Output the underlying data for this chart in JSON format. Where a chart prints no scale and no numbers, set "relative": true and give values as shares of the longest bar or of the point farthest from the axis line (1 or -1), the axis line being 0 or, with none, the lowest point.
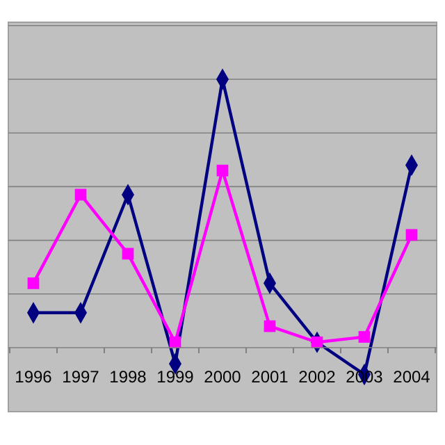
{
  "chart_data": {
    "type": "line",
    "relative": true,
    "grid": "y",
    "categories": [
      "1996",
      "1997",
      "1998",
      "1999",
      "2000",
      "2001",
      "2002",
      "2003",
      "2004"
    ],
    "series": [
      {
        "color": "#000080",
        "marker": "diamond",
        "values": [
          0.13,
          0.13,
          0.57,
          -0.06,
          1,
          0.24,
          0.02,
          -0.1,
          0.68
        ]
      },
      {
        "color": "#ff00ff",
        "marker": "square",
        "values": [
          0.24,
          0.57,
          0.35,
          0.02,
          0.66,
          0.08,
          0.02,
          0.04,
          0.42
        ]
      }
    ]
  }
}
